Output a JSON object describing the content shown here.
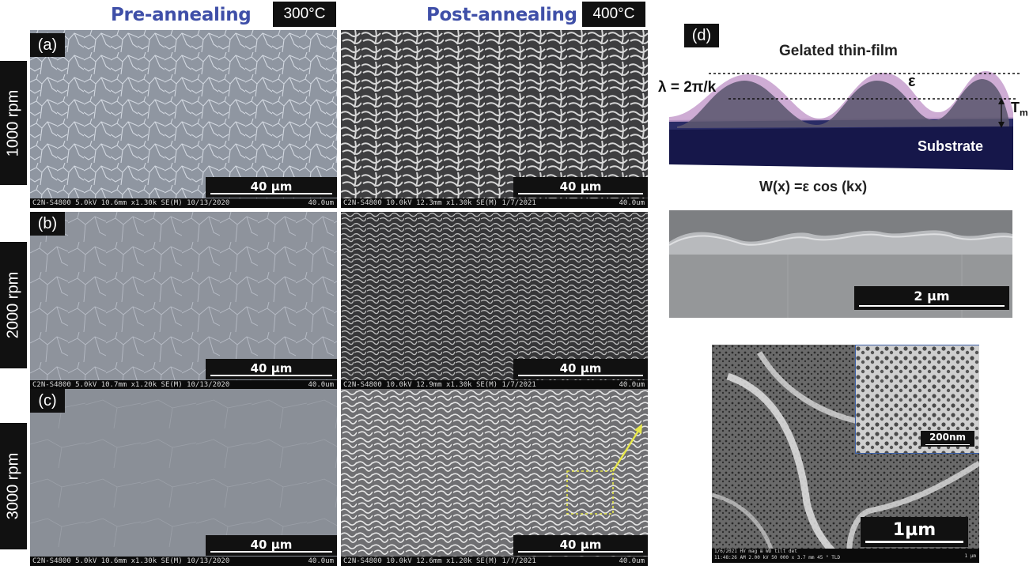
{
  "headers": {
    "pre": "Pre-annealing",
    "post": "Post-annealing",
    "temp_pre": "300°C",
    "temp_post": "400°C"
  },
  "rows": [
    {
      "tag": "(a)",
      "label": "1000 rpm"
    },
    {
      "tag": "(b)",
      "label": "2000 rpm"
    },
    {
      "tag": "(c)",
      "label": "3000 rpm"
    }
  ],
  "panels": {
    "a_pre": {
      "meta": "C2N-S4800 5.0kV 10.6mm x1.30k SE(M) 10/13/2020",
      "meta_right": "40.0um",
      "scale": "40 µm"
    },
    "a_post": {
      "meta": "C2N-S4800 10.0kV 12.3mm x1.30k SE(M) 1/7/2021",
      "meta_right": "40.0um",
      "scale": "40 µm"
    },
    "b_pre": {
      "meta": "C2N-S4800 5.0kV 10.7mm x1.20k SE(M) 10/13/2020",
      "meta_right": "40.0um",
      "scale": "40 µm"
    },
    "b_post": {
      "meta": "C2N-S4800 10.0kV 12.9mm x1.30k SE(M) 1/7/2021",
      "meta_right": "40.0um",
      "scale": "40 µm"
    },
    "c_pre": {
      "meta": "C2N-S4800 5.0kV 10.6mm x1.30k SE(M) 10/13/2020",
      "meta_right": "40.0um",
      "scale": "40 µm"
    },
    "c_post": {
      "meta": "C2N-S4800 10.0kV 12.6mm x1.20k SE(M) 1/7/2021",
      "meta_right": "40.0um",
      "scale": "40 µm"
    }
  },
  "diagram": {
    "tag": "(d)",
    "title": "Gelated thin-film",
    "lambda": "λ = 2π/k",
    "epsilon": "ε",
    "thickness": "T",
    "thickness_sub": "m",
    "substrate": "Substrate",
    "equation": "W(x) =ε cos (kx)"
  },
  "cross_section": {
    "scale": "2 µm"
  },
  "zoom": {
    "scale": "1µm",
    "inset_scale": "200nm",
    "meta": [
      "1/6/2021",
      "HV",
      "mag ⊞",
      "WD",
      "tilt",
      "det"
    ],
    "meta2": [
      "11:48:26 AM",
      "2.00 kV",
      "50 000 x",
      "3.7 mm",
      "45 °",
      "TLD"
    ],
    "meta_scale": "1 µm"
  },
  "colors": {
    "header_blue": "#3f4fa8",
    "film_pink": "#c9a3cf",
    "substrate_navy": "#16174a",
    "arrow_yellow": "#e8e84a"
  }
}
